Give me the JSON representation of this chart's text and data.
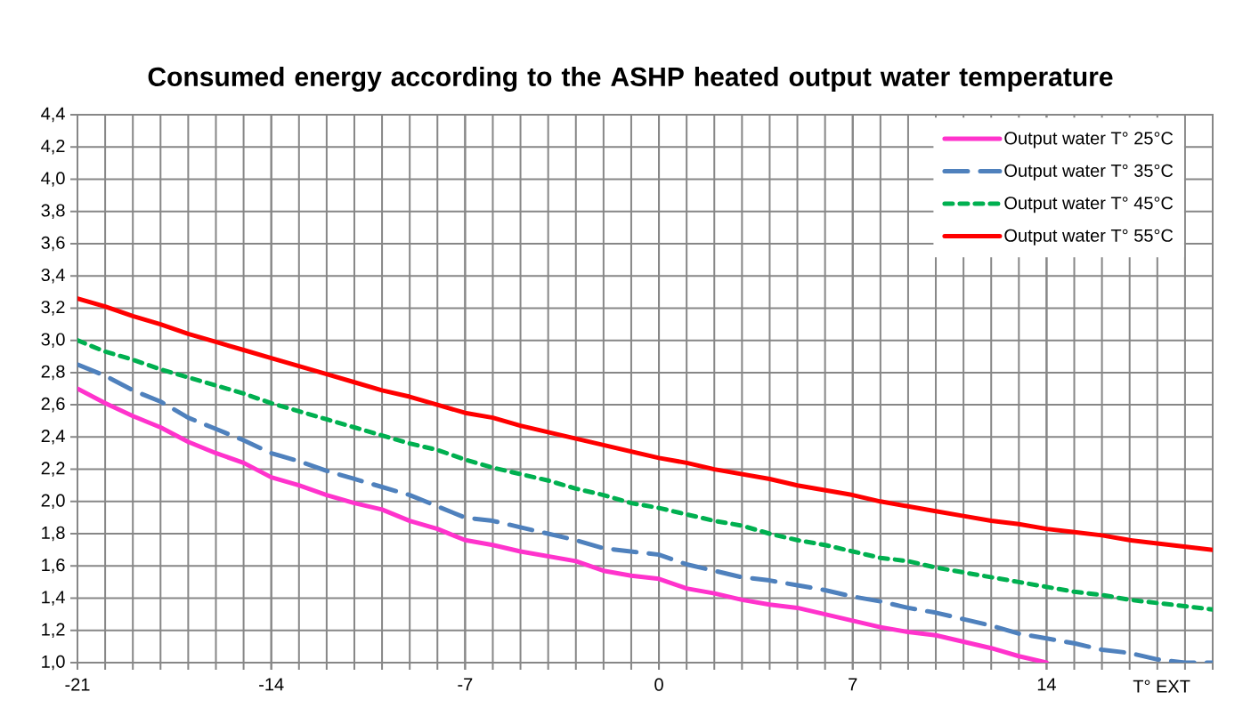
{
  "chart_data": {
    "type": "line",
    "title": "Consumed energy according to the ASHP heated output water temperature",
    "xlabel": "T° EXT",
    "x": [
      -21,
      -20,
      -19,
      -18,
      -17,
      -16,
      -15,
      -14,
      -13,
      -12,
      -11,
      -10,
      -9,
      -8,
      -7,
      -6,
      -5,
      -4,
      -3,
      -2,
      -1,
      0,
      1,
      2,
      3,
      4,
      5,
      6,
      7,
      8,
      9,
      10,
      11,
      12,
      13,
      14,
      15,
      16,
      17,
      18,
      19,
      20
    ],
    "series": [
      {
        "name": "Output water T° 25°C",
        "color": "#ff33cc",
        "line_style": "solid",
        "values": [
          2.7,
          2.61,
          2.53,
          2.46,
          2.37,
          2.3,
          2.24,
          2.15,
          2.1,
          2.04,
          1.99,
          1.95,
          1.88,
          1.83,
          1.76,
          1.73,
          1.69,
          1.66,
          1.63,
          1.57,
          1.54,
          1.52,
          1.46,
          1.43,
          1.39,
          1.36,
          1.34,
          1.3,
          1.26,
          1.22,
          1.19,
          1.17,
          1.13,
          1.09,
          1.04,
          1.0,
          null,
          null,
          null,
          null,
          null,
          null
        ]
      },
      {
        "name": "Output water T° 35°C",
        "color": "#4f81bd",
        "line_style": "dashed",
        "values": [
          2.85,
          2.78,
          2.69,
          2.62,
          2.52,
          2.45,
          2.38,
          2.3,
          2.25,
          2.19,
          2.14,
          2.09,
          2.04,
          1.97,
          1.9,
          1.88,
          1.84,
          1.8,
          1.76,
          1.71,
          1.69,
          1.67,
          1.61,
          1.57,
          1.53,
          1.51,
          1.48,
          1.45,
          1.41,
          1.38,
          1.34,
          1.31,
          1.27,
          1.23,
          1.18,
          1.15,
          1.12,
          1.08,
          1.06,
          1.02,
          1.0,
          1.0
        ]
      },
      {
        "name": "Output water T° 45°C",
        "color": "#00b050",
        "line_style": "dotted",
        "values": [
          3.0,
          2.93,
          2.88,
          2.82,
          2.77,
          2.72,
          2.67,
          2.61,
          2.56,
          2.51,
          2.46,
          2.41,
          2.36,
          2.32,
          2.26,
          2.21,
          2.17,
          2.13,
          2.08,
          2.04,
          1.99,
          1.96,
          1.92,
          1.88,
          1.85,
          1.8,
          1.76,
          1.73,
          1.69,
          1.65,
          1.63,
          1.59,
          1.56,
          1.53,
          1.5,
          1.47,
          1.44,
          1.42,
          1.39,
          1.37,
          1.35,
          1.33
        ]
      },
      {
        "name": "Output water T° 55°C",
        "color": "#ff0000",
        "line_style": "solid",
        "values": [
          3.26,
          3.21,
          3.15,
          3.1,
          3.04,
          2.99,
          2.94,
          2.89,
          2.84,
          2.79,
          2.74,
          2.69,
          2.65,
          2.6,
          2.55,
          2.52,
          2.47,
          2.43,
          2.39,
          2.35,
          2.31,
          2.27,
          2.24,
          2.2,
          2.17,
          2.14,
          2.1,
          2.07,
          2.04,
          2.0,
          1.97,
          1.94,
          1.91,
          1.88,
          1.86,
          1.83,
          1.81,
          1.79,
          1.76,
          1.74,
          1.72,
          1.7
        ]
      }
    ],
    "xlim": [
      -21,
      20
    ],
    "xticks": [
      -21,
      -14,
      -7,
      0,
      7,
      14
    ],
    "ylim": [
      1.0,
      4.4
    ],
    "yticks": [
      {
        "value": 1.0,
        "label": "1,0"
      },
      {
        "value": 1.2,
        "label": "1,2"
      },
      {
        "value": 1.4,
        "label": "1,4"
      },
      {
        "value": 1.6,
        "label": "1,6"
      },
      {
        "value": 1.8,
        "label": "1,8"
      },
      {
        "value": 2.0,
        "label": "2,0"
      },
      {
        "value": 2.2,
        "label": "2,2"
      },
      {
        "value": 2.4,
        "label": "2,4"
      },
      {
        "value": 2.6,
        "label": "2,6"
      },
      {
        "value": 2.8,
        "label": "2,8"
      },
      {
        "value": 3.0,
        "label": "3,0"
      },
      {
        "value": 3.2,
        "label": "3,2"
      },
      {
        "value": 3.4,
        "label": "3,4"
      },
      {
        "value": 3.6,
        "label": "3,6"
      },
      {
        "value": 3.8,
        "label": "3,8"
      },
      {
        "value": 4.0,
        "label": "4,0"
      },
      {
        "value": 4.2,
        "label": "4,2"
      },
      {
        "value": 4.4,
        "label": "4,4"
      }
    ],
    "grid": true,
    "legend": "top right",
    "marker": "none"
  }
}
